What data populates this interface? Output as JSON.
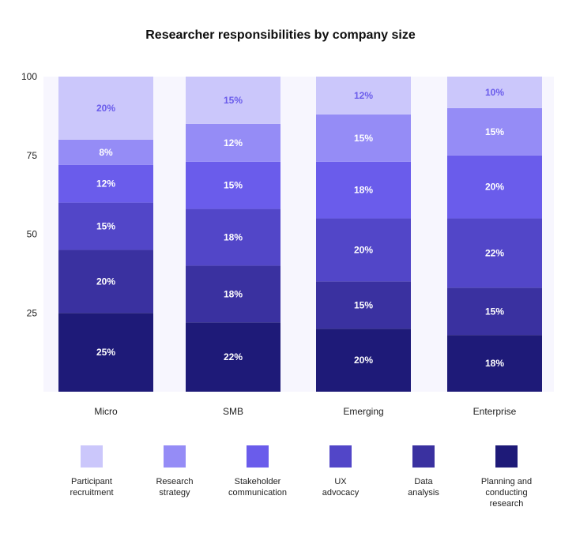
{
  "chart_data": {
    "type": "bar",
    "stacked": true,
    "title": "Researcher responsibilities by company size",
    "xlabel": "",
    "ylabel": "",
    "ylim": [
      0,
      100
    ],
    "yticks": [
      "25",
      "50",
      "75",
      "100"
    ],
    "grid": false,
    "legend_position": "bottom",
    "categories": [
      "Micro",
      "SMB",
      "Emerging",
      "Enterprise"
    ],
    "series": [
      {
        "name": "Planning and conducting research",
        "color": "#1e1a78",
        "label_color": "#ffffff",
        "values": [
          25,
          22,
          20,
          18
        ],
        "labels": [
          "25%",
          "22%",
          "20%",
          "18%"
        ]
      },
      {
        "name": "Data analysis",
        "color": "#3a31a0",
        "label_color": "#ffffff",
        "values": [
          20,
          18,
          15,
          15
        ],
        "labels": [
          "20%",
          "18%",
          "15%",
          "15%"
        ]
      },
      {
        "name": "UX advocacy",
        "color": "#5246c8",
        "label_color": "#ffffff",
        "values": [
          15,
          18,
          20,
          22
        ],
        "labels": [
          "15%",
          "18%",
          "20%",
          "22%"
        ]
      },
      {
        "name": "Stakeholder communication",
        "color": "#6a5ceb",
        "label_color": "#ffffff",
        "values": [
          12,
          15,
          18,
          20
        ],
        "labels": [
          "12%",
          "15%",
          "18%",
          "20%"
        ]
      },
      {
        "name": "Research strategy",
        "color": "#958cf6",
        "label_color": "#ffffff",
        "values": [
          8,
          12,
          15,
          15
        ],
        "labels": [
          "8%",
          "12%",
          "15%",
          "15%"
        ]
      },
      {
        "name": "Participant recruitment",
        "color": "#cbc7fb",
        "label_color": "#6a5ceb",
        "values": [
          20,
          15,
          12,
          10
        ],
        "labels": [
          "20%",
          "15%",
          "12%",
          "10%"
        ]
      }
    ],
    "legend": [
      {
        "lines": [
          "Participant",
          "recruitment"
        ],
        "color": "#cbc7fb"
      },
      {
        "lines": [
          "Research",
          "strategy"
        ],
        "color": "#958cf6"
      },
      {
        "lines": [
          "Stakeholder",
          "communication"
        ],
        "color": "#6a5ceb"
      },
      {
        "lines": [
          "UX",
          "advocacy"
        ],
        "color": "#5246c8"
      },
      {
        "lines": [
          "Data",
          "analysis"
        ],
        "color": "#3a31a0"
      },
      {
        "lines": [
          "Planning and",
          "conducting",
          "research"
        ],
        "color": "#1e1a78"
      }
    ]
  },
  "colors": {
    "plot_background": "#f7f6fe"
  }
}
